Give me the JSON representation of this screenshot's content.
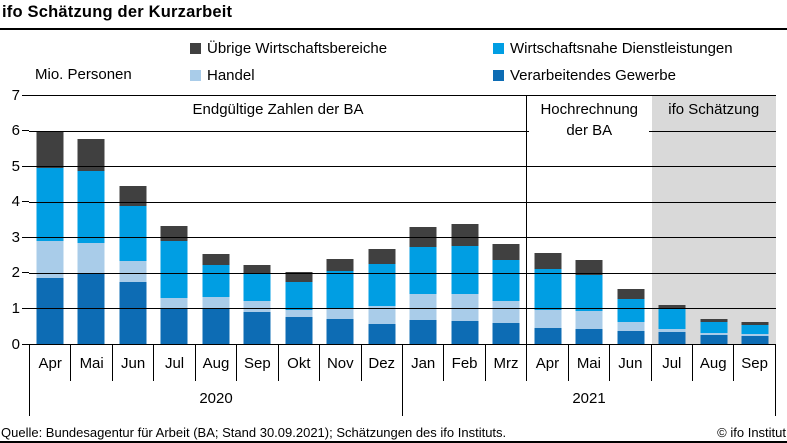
{
  "header": {
    "title": "ifo Schätzung der Kurzarbeit"
  },
  "axis_note": "Mio. Personen",
  "legend": [
    {
      "label": "Übrige Wirtschaftsbereiche",
      "color": "#404040"
    },
    {
      "label": "Wirtschaftsnahe Dienstleistungen",
      "color": "#009ee3"
    },
    {
      "label": "Handel",
      "color": "#a9cce9"
    },
    {
      "label": "Verarbeitendes Gewerbe",
      "color": "#0d6cb4"
    }
  ],
  "sections": [
    {
      "label": "Endgültige Zahlen der BA",
      "months": 12,
      "shaded": false,
      "divider": false,
      "boxed": false
    },
    {
      "label": "Hochrechnung der BA",
      "months": 3,
      "shaded": false,
      "divider": true,
      "boxed": true
    },
    {
      "label": "ifo Schätzung",
      "months": 3,
      "shaded": true,
      "divider": false,
      "boxed": false
    }
  ],
  "chart_data": {
    "type": "bar",
    "stacked": true,
    "title": "ifo Schätzung der Kurzarbeit",
    "ylabel": "Mio. Personen",
    "ylim": [
      0,
      7
    ],
    "yticks": [
      0,
      1,
      2,
      3,
      4,
      5,
      6,
      7
    ],
    "grid": "horizontal",
    "legend_position": "top",
    "categories": [
      "Apr",
      "Mai",
      "Jun",
      "Jul",
      "Aug",
      "Sep",
      "Okt",
      "Nov",
      "Dez",
      "Jan",
      "Feb",
      "Mrz",
      "Apr",
      "Mai",
      "Jun",
      "Jul",
      "Aug",
      "Sep"
    ],
    "year_groups": [
      {
        "label": "2020",
        "span": 9
      },
      {
        "label": "2021",
        "span": 9
      }
    ],
    "series": [
      {
        "name": "Verarbeitendes Gewerbe",
        "color": "#0d6cb4",
        "values": [
          1.85,
          2.0,
          1.75,
          1.0,
          1.0,
          0.9,
          0.76,
          0.7,
          0.56,
          0.68,
          0.65,
          0.59,
          0.45,
          0.42,
          0.37,
          0.33,
          0.26,
          0.23
        ]
      },
      {
        "name": "Handel",
        "color": "#a9cce9",
        "values": [
          1.05,
          0.85,
          0.58,
          0.3,
          0.33,
          0.3,
          0.21,
          0.29,
          0.52,
          0.73,
          0.77,
          0.61,
          0.52,
          0.52,
          0.26,
          0.09,
          0.06,
          0.06
        ]
      },
      {
        "name": "Wirtschaftsnahe Dienstleistungen",
        "color": "#009ee3",
        "values": [
          2.05,
          2.0,
          1.55,
          1.6,
          0.9,
          0.8,
          0.77,
          1.05,
          1.18,
          1.33,
          1.34,
          1.17,
          1.15,
          0.99,
          0.64,
          0.57,
          0.29,
          0.24
        ]
      },
      {
        "name": "Übrige Wirtschaftsbereiche",
        "color": "#404040",
        "values": [
          1.05,
          0.9,
          0.57,
          0.42,
          0.3,
          0.22,
          0.28,
          0.36,
          0.42,
          0.56,
          0.62,
          0.45,
          0.43,
          0.43,
          0.27,
          0.1,
          0.09,
          0.08
        ]
      }
    ],
    "totals": [
      6.0,
      5.75,
      4.45,
      3.32,
      2.53,
      2.22,
      2.02,
      2.4,
      2.68,
      3.3,
      3.38,
      2.82,
      2.55,
      2.36,
      1.54,
      1.09,
      0.7,
      0.61
    ]
  },
  "footer": {
    "source": "Quelle: Bundesagentur für Arbeit (BA; Stand 30.09.2021); Schätzungen des ifo Instituts.",
    "copyright": "© ifo Institut"
  }
}
